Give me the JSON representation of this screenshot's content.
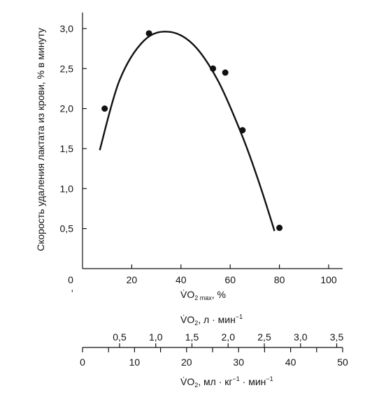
{
  "chart_data": [
    {
      "type": "scatter",
      "title": "",
      "ylabel": "Скорость удаления лактата из крови, % в минуту",
      "xlabel": {
        "symbol": "V̇O",
        "sub": "2 max",
        "rest": ",  %"
      },
      "x_ticks": [
        "0",
        "20",
        "40",
        "60",
        "80",
        "100"
      ],
      "y_ticks": [
        "0,5",
        "1,0",
        "1,5",
        "2,0",
        "2,5",
        "3,0"
      ],
      "xlim": [
        0,
        100
      ],
      "ylim": [
        0,
        3.2
      ],
      "grid": false,
      "series": [
        {
          "kind": "points",
          "x": [
            9,
            27,
            53,
            58,
            65,
            80
          ],
          "y": [
            2.0,
            2.94,
            2.5,
            2.45,
            1.73,
            0.51
          ]
        },
        {
          "kind": "fit-curve",
          "x": [
            7,
            15,
            25,
            35,
            45,
            55,
            65,
            72,
            78
          ],
          "y": [
            1.48,
            2.35,
            2.85,
            2.96,
            2.8,
            2.35,
            1.65,
            1.05,
            0.47
          ]
        }
      ]
    },
    {
      "type": "axis",
      "label": {
        "symbol": "V̇O",
        "sub": "2",
        "rest": ",  л · мин",
        "sup": "−1"
      },
      "ticks": [
        "0,5",
        "1,0",
        "1,5",
        "2,0",
        "2,5",
        "3,0",
        "3,5"
      ],
      "values": [
        0.5,
        1.0,
        1.5,
        2.0,
        2.5,
        3.0,
        3.5
      ]
    },
    {
      "type": "axis",
      "label": {
        "symbol": "V̇O",
        "sub": "2",
        "rest": ",  мл · кг",
        "sup1": "−1",
        "rest2": " · мин",
        "sup2": "−1"
      },
      "ticks": [
        "0",
        "10",
        "20",
        "30",
        "40",
        "50"
      ],
      "values": [
        0,
        10,
        20,
        30,
        40,
        50
      ],
      "lim": [
        0,
        50
      ]
    }
  ]
}
